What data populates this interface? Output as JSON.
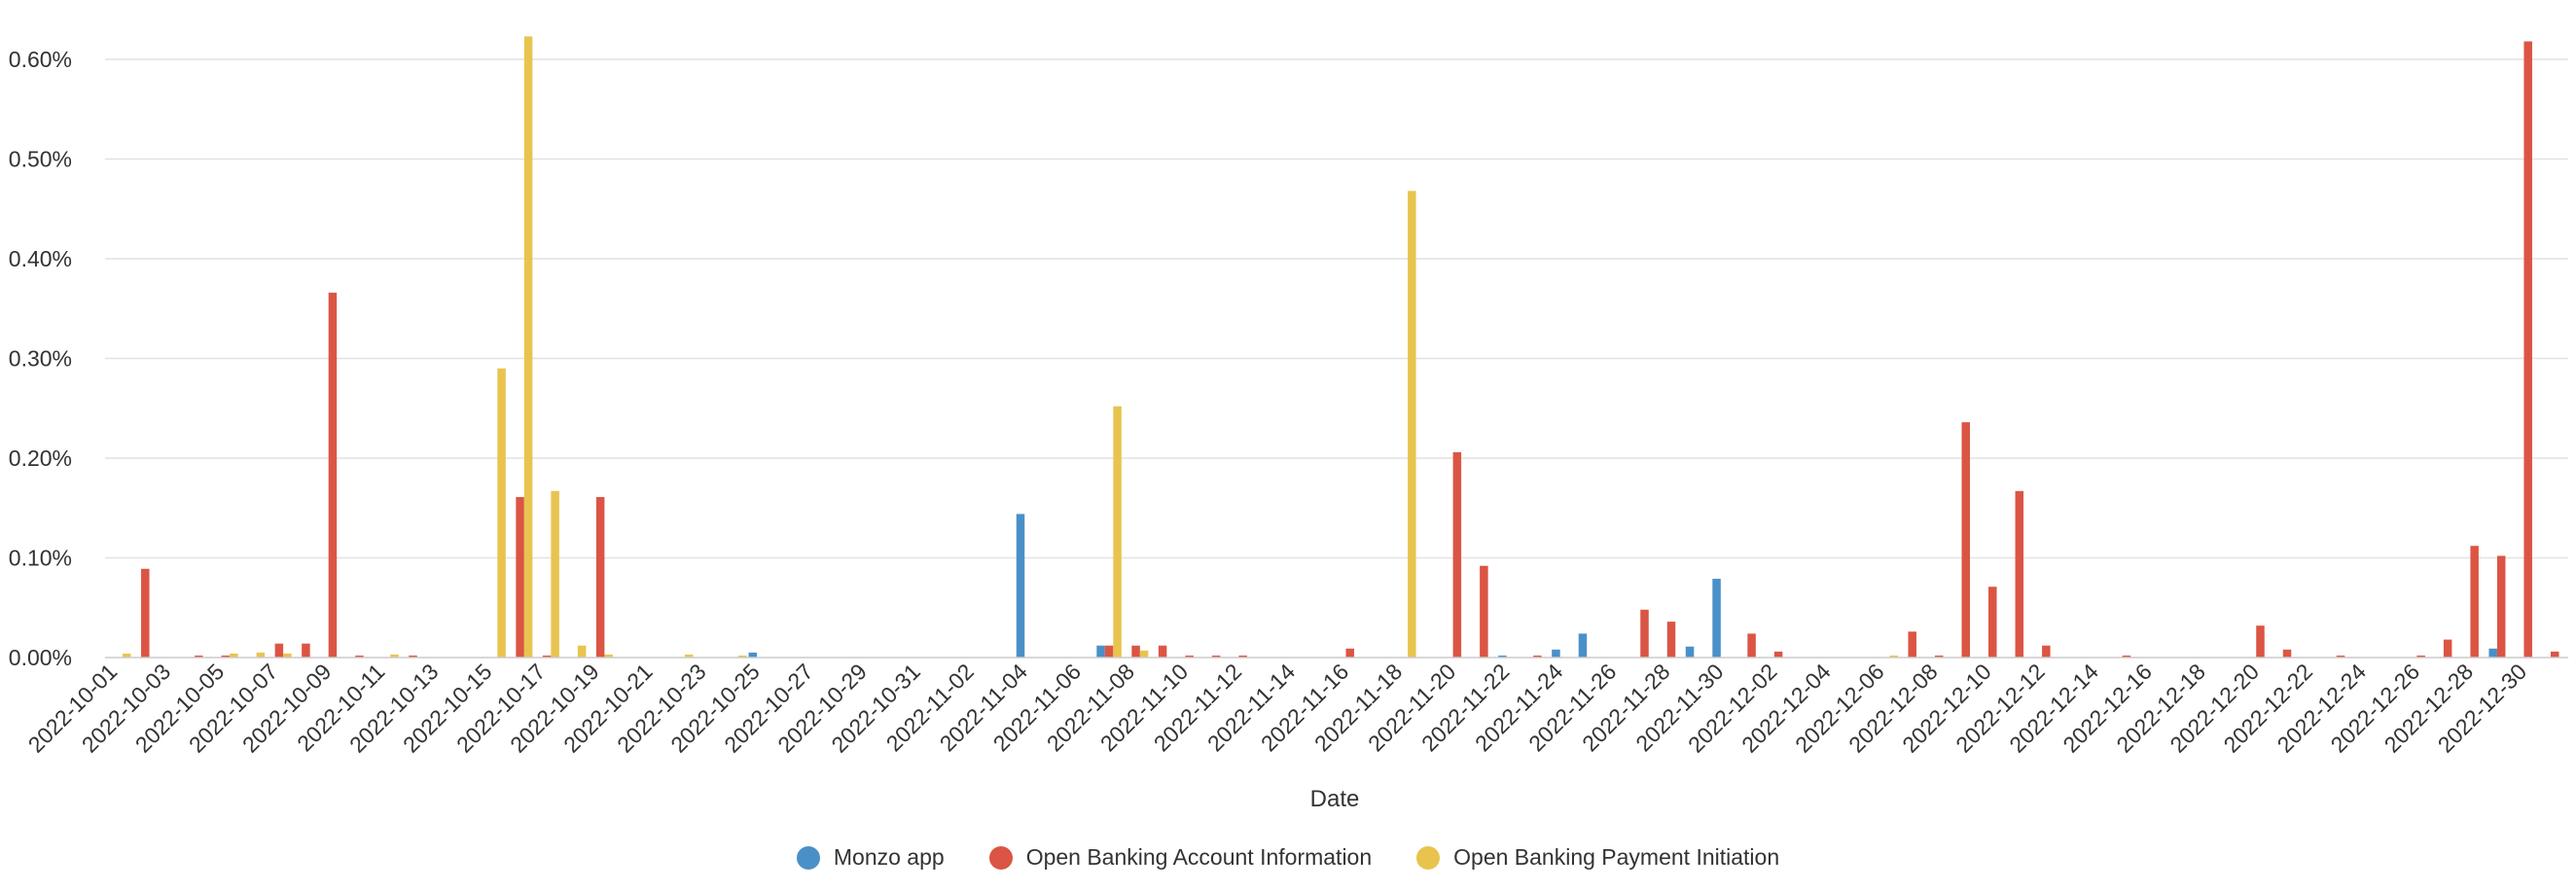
{
  "chart_data": {
    "type": "bar",
    "xlabel": "Date",
    "ylabel": "",
    "ylim": [
      0,
      0.0064
    ],
    "yticks": [
      0,
      0.001,
      0.002,
      0.003,
      0.004,
      0.005,
      0.006
    ],
    "ytick_labels": [
      "0.00%",
      "0.10%",
      "0.20%",
      "0.30%",
      "0.40%",
      "0.50%",
      "0.60%"
    ],
    "grid": "horizontal",
    "legend_position": "bottom-center",
    "categories": [
      "2022-10-01",
      "2022-10-02",
      "2022-10-03",
      "2022-10-04",
      "2022-10-05",
      "2022-10-06",
      "2022-10-07",
      "2022-10-08",
      "2022-10-09",
      "2022-10-10",
      "2022-10-11",
      "2022-10-12",
      "2022-10-13",
      "2022-10-14",
      "2022-10-15",
      "2022-10-16",
      "2022-10-17",
      "2022-10-18",
      "2022-10-19",
      "2022-10-20",
      "2022-10-21",
      "2022-10-22",
      "2022-10-23",
      "2022-10-24",
      "2022-10-25",
      "2022-10-26",
      "2022-10-27",
      "2022-10-28",
      "2022-10-29",
      "2022-10-30",
      "2022-10-31",
      "2022-11-01",
      "2022-11-02",
      "2022-11-03",
      "2022-11-04",
      "2022-11-05",
      "2022-11-06",
      "2022-11-07",
      "2022-11-08",
      "2022-11-09",
      "2022-11-10",
      "2022-11-11",
      "2022-11-12",
      "2022-11-13",
      "2022-11-14",
      "2022-11-15",
      "2022-11-16",
      "2022-11-17",
      "2022-11-18",
      "2022-11-19",
      "2022-11-20",
      "2022-11-21",
      "2022-11-22",
      "2022-11-23",
      "2022-11-24",
      "2022-11-25",
      "2022-11-26",
      "2022-11-27",
      "2022-11-28",
      "2022-11-29",
      "2022-11-30",
      "2022-12-01",
      "2022-12-02",
      "2022-12-03",
      "2022-12-04",
      "2022-12-05",
      "2022-12-06",
      "2022-12-07",
      "2022-12-08",
      "2022-12-09",
      "2022-12-10",
      "2022-12-11",
      "2022-12-12",
      "2022-12-13",
      "2022-12-14",
      "2022-12-15",
      "2022-12-16",
      "2022-12-17",
      "2022-12-18",
      "2022-12-19",
      "2022-12-20",
      "2022-12-21",
      "2022-12-22",
      "2022-12-23",
      "2022-12-24",
      "2022-12-25",
      "2022-12-26",
      "2022-12-27",
      "2022-12-28",
      "2022-12-29",
      "2022-12-30",
      "2022-12-31"
    ],
    "x_tick_labels": [
      "2022-10-01",
      "2022-10-03",
      "2022-10-05",
      "2022-10-07",
      "2022-10-09",
      "2022-10-11",
      "2022-10-13",
      "2022-10-15",
      "2022-10-17",
      "2022-10-19",
      "2022-10-21",
      "2022-10-23",
      "2022-10-25",
      "2022-10-27",
      "2022-10-29",
      "2022-10-31",
      "2022-11-02",
      "2022-11-04",
      "2022-11-06",
      "2022-11-08",
      "2022-11-10",
      "2022-11-12",
      "2022-11-14",
      "2022-11-16",
      "2022-11-18",
      "2022-11-20",
      "2022-11-22",
      "2022-11-24",
      "2022-11-26",
      "2022-11-28",
      "2022-11-30",
      "2022-12-02",
      "2022-12-04",
      "2022-12-06",
      "2022-12-08",
      "2022-12-10",
      "2022-12-12",
      "2022-12-14",
      "2022-12-16",
      "2022-12-18",
      "2022-12-20",
      "2022-12-22",
      "2022-12-24",
      "2022-12-26",
      "2022-12-28",
      "2022-12-30"
    ],
    "series": [
      {
        "name": "Monzo app",
        "color": "#4a90c8",
        "values": [
          0,
          0,
          0,
          0,
          0,
          0,
          0,
          0,
          0,
          0,
          0,
          0,
          0,
          0,
          0,
          0,
          0,
          0,
          0,
          0,
          0,
          0,
          0,
          0,
          5e-05,
          0,
          0,
          0,
          0,
          0,
          0,
          0,
          0,
          0,
          0.00144,
          0,
          0,
          0.00012,
          0,
          0,
          0,
          0,
          0,
          0,
          0,
          0,
          0,
          0,
          0,
          0,
          0,
          0,
          2e-05,
          0,
          8e-05,
          0.00024,
          0,
          0,
          0,
          0.00011,
          0.00079,
          0,
          0,
          0,
          0,
          0,
          0,
          0,
          0,
          0,
          0,
          0,
          0,
          0,
          0,
          0,
          0,
          0,
          0,
          0,
          0,
          0,
          0,
          0,
          0,
          0,
          0,
          0,
          0,
          9e-05,
          0,
          0
        ]
      },
      {
        "name": "Open Banking Account Information",
        "color": "#db5544",
        "values": [
          0,
          0.00089,
          0,
          2e-05,
          2e-05,
          0,
          0.00014,
          0.00014,
          0.00366,
          2e-05,
          0,
          2e-05,
          0,
          0,
          0,
          0.00161,
          2e-05,
          0,
          0.00161,
          0,
          0,
          0,
          0,
          0,
          0,
          0,
          0,
          0,
          0,
          0,
          0,
          0,
          0,
          0,
          0,
          0,
          0,
          0.00012,
          0.00012,
          0.00012,
          2e-05,
          2e-05,
          2e-05,
          0,
          0,
          0,
          9e-05,
          0,
          0,
          0,
          0.00206,
          0.00092,
          0,
          2e-05,
          0,
          0,
          0,
          0.00048,
          0.00036,
          0,
          0,
          0.00024,
          6e-05,
          0,
          0,
          0,
          0,
          0.00026,
          2e-05,
          0.00236,
          0.00071,
          0.00167,
          0.00012,
          0,
          0,
          2e-05,
          0,
          0,
          0,
          0,
          0.00032,
          8e-05,
          0,
          2e-05,
          0,
          0,
          2e-05,
          0.00018,
          0.00112,
          0.00102,
          0.00618,
          6e-05
        ]
      },
      {
        "name": "Open Banking Payment Initiation",
        "color": "#e8c44f",
        "values": [
          4e-05,
          0,
          0,
          0,
          4e-05,
          5e-05,
          4e-05,
          0,
          0,
          0,
          3e-05,
          0,
          0,
          0,
          0.0029,
          0.00623,
          0.00167,
          0.00012,
          3e-05,
          0,
          0,
          3e-05,
          0,
          2e-05,
          0,
          0,
          0,
          0,
          0,
          0,
          0,
          0,
          0,
          0,
          0,
          0,
          0,
          0.00252,
          7e-05,
          0,
          0,
          0,
          0,
          0,
          0,
          0,
          0,
          0,
          0.00468,
          0,
          0,
          0,
          0,
          0,
          0,
          0,
          0,
          0,
          0,
          0,
          0,
          0,
          0,
          0,
          0,
          0,
          2e-05,
          0,
          0,
          0,
          0,
          0,
          0,
          0,
          0,
          0,
          0,
          0,
          0,
          0,
          0,
          0,
          0,
          0,
          0,
          0,
          0,
          0,
          0,
          0,
          0,
          0
        ]
      }
    ]
  }
}
